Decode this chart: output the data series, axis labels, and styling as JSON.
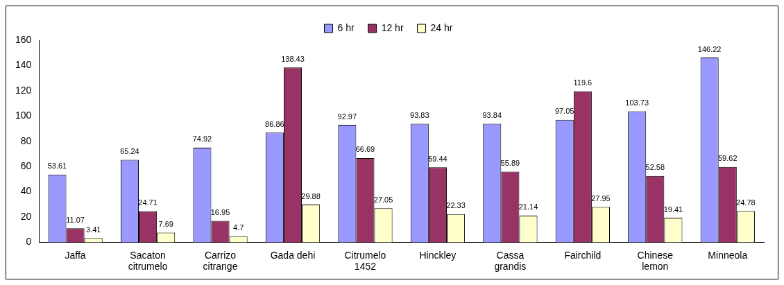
{
  "chart_data": {
    "type": "bar",
    "categories": [
      "Jaffa",
      "Sacaton citrumelo",
      "Carrizo citrange",
      "Gada dehi",
      "Citrumelo 1452",
      "Hinckley",
      "Cassa grandis",
      "Fairchild",
      "Chinese lemon",
      "Minneola"
    ],
    "series": [
      {
        "name": "6 hr",
        "color": "#9999ff",
        "values": [
          53.61,
          65.24,
          74.92,
          86.86,
          92.97,
          93.83,
          93.84,
          97.05,
          103.73,
          146.22
        ]
      },
      {
        "name": "12 hr",
        "color": "#993366",
        "values": [
          11.07,
          24.71,
          16.95,
          138.43,
          66.69,
          59.44,
          55.89,
          119.6,
          52.58,
          59.62
        ]
      },
      {
        "name": "24 hr",
        "color": "#ffffcc",
        "values": [
          3.41,
          7.69,
          4.7,
          29.88,
          27.05,
          22.33,
          21.14,
          27.95,
          19.41,
          24.78
        ]
      }
    ],
    "ylim": [
      0,
      160
    ],
    "yticks": [
      0,
      20,
      40,
      60,
      80,
      100,
      120,
      140,
      160
    ],
    "grid": false,
    "legend": "top",
    "data_labels": true
  }
}
